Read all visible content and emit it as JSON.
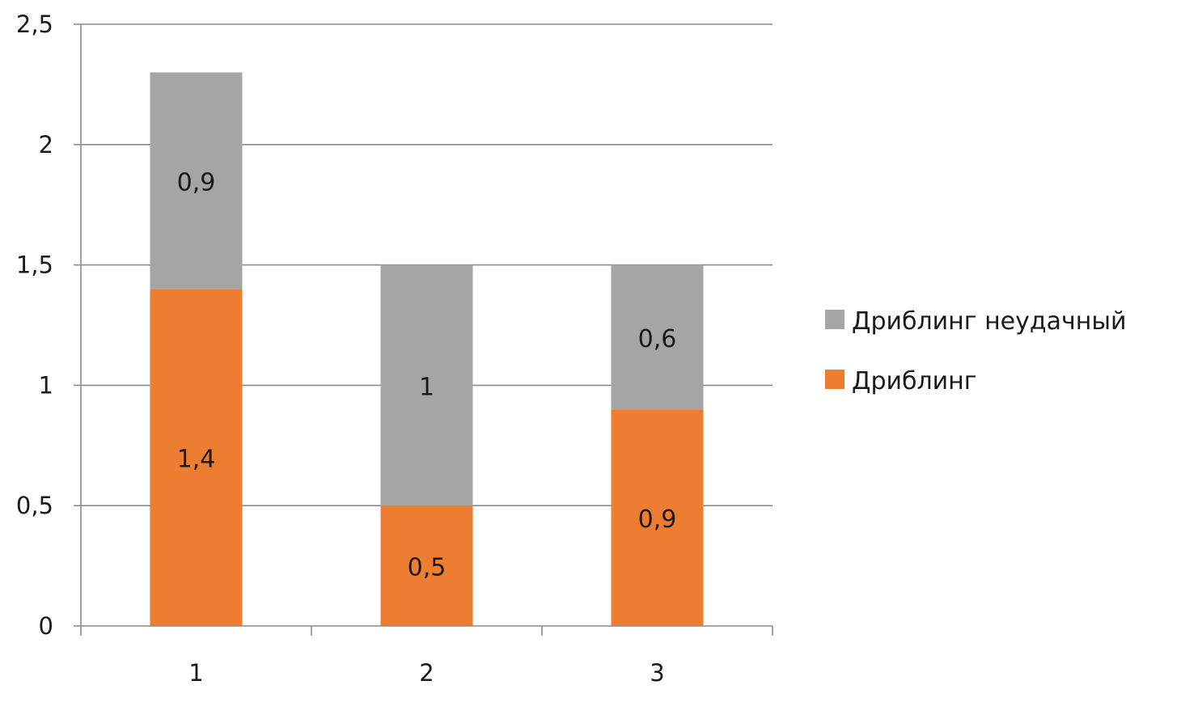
{
  "chart_data": {
    "type": "bar",
    "stacked": true,
    "categories": [
      "1",
      "2",
      "3"
    ],
    "series": [
      {
        "name": "Дриблинг",
        "values": [
          1.4,
          0.5,
          0.9
        ],
        "color": "#ed7d31"
      },
      {
        "name": "Дриблинг неудачный",
        "values": [
          0.9,
          1.0,
          0.6
        ],
        "color": "#a5a5a5"
      }
    ],
    "data_labels": [
      [
        "1,4",
        "0,5",
        "0,9"
      ],
      [
        "0,9",
        "1",
        "0,6"
      ]
    ],
    "y_ticks": [
      0,
      0.5,
      1,
      1.5,
      2,
      2.5
    ],
    "y_tick_labels": [
      "0",
      "0,5",
      "1",
      "1,5",
      "2",
      "2,5"
    ],
    "ylim": [
      0,
      2.5
    ],
    "grid": true,
    "legend_position": "right",
    "legend_order": [
      "Дриблинг неудачный",
      "Дриблинг"
    ],
    "title": "",
    "xlabel": "",
    "ylabel": ""
  }
}
